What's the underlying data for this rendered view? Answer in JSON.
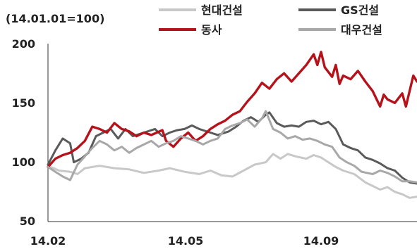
{
  "chart_data": {
    "type": "line",
    "unit_label": "(14.01.01=100)",
    "y_ticks": [
      "200",
      "150",
      "100",
      "50"
    ],
    "y_tick_values": [
      200,
      150,
      100,
      50
    ],
    "x_ticks": [
      "14.02",
      "14.05",
      "14.09"
    ],
    "x_tick_positions": [
      0,
      0.33,
      0.66
    ],
    "ylim": [
      50,
      200
    ],
    "xlim": [
      0,
      1
    ],
    "grid": false,
    "legend_position": "top-right",
    "series": [
      {
        "name": "현대건설",
        "color": "#c8c8c8",
        "points": [
          [
            0,
            97
          ],
          [
            0.03,
            93
          ],
          [
            0.06,
            92
          ],
          [
            0.08,
            90
          ],
          [
            0.1,
            95
          ],
          [
            0.14,
            97
          ],
          [
            0.18,
            95
          ],
          [
            0.22,
            94
          ],
          [
            0.26,
            91
          ],
          [
            0.3,
            93
          ],
          [
            0.33,
            95
          ],
          [
            0.37,
            92
          ],
          [
            0.41,
            90
          ],
          [
            0.44,
            93
          ],
          [
            0.47,
            89
          ],
          [
            0.5,
            88
          ],
          [
            0.53,
            93
          ],
          [
            0.56,
            98
          ],
          [
            0.59,
            100
          ],
          [
            0.61,
            107
          ],
          [
            0.63,
            103
          ],
          [
            0.65,
            107
          ],
          [
            0.67,
            105
          ],
          [
            0.7,
            103
          ],
          [
            0.72,
            106
          ],
          [
            0.74,
            104
          ],
          [
            0.76,
            100
          ],
          [
            0.78,
            96
          ],
          [
            0.8,
            93
          ],
          [
            0.83,
            90
          ],
          [
            0.86,
            83
          ],
          [
            0.88,
            80
          ],
          [
            0.9,
            77
          ],
          [
            0.92,
            79
          ],
          [
            0.94,
            75
          ],
          [
            0.96,
            73
          ],
          [
            0.98,
            70
          ],
          [
            1,
            71
          ]
        ]
      },
      {
        "name": "GS건설",
        "color": "#5a5a5a",
        "points": [
          [
            0,
            98
          ],
          [
            0.02,
            110
          ],
          [
            0.04,
            120
          ],
          [
            0.06,
            116
          ],
          [
            0.07,
            100
          ],
          [
            0.09,
            103
          ],
          [
            0.11,
            108
          ],
          [
            0.13,
            122
          ],
          [
            0.15,
            125
          ],
          [
            0.17,
            128
          ],
          [
            0.19,
            120
          ],
          [
            0.21,
            128
          ],
          [
            0.23,
            122
          ],
          [
            0.26,
            125
          ],
          [
            0.29,
            128
          ],
          [
            0.31,
            122
          ],
          [
            0.33,
            125
          ],
          [
            0.35,
            127
          ],
          [
            0.37,
            128
          ],
          [
            0.39,
            131
          ],
          [
            0.41,
            128
          ],
          [
            0.44,
            125
          ],
          [
            0.46,
            123
          ],
          [
            0.49,
            126
          ],
          [
            0.51,
            130
          ],
          [
            0.53,
            135
          ],
          [
            0.55,
            138
          ],
          [
            0.57,
            134
          ],
          [
            0.59,
            140
          ],
          [
            0.6,
            142
          ],
          [
            0.62,
            133
          ],
          [
            0.64,
            130
          ],
          [
            0.66,
            131
          ],
          [
            0.68,
            130
          ],
          [
            0.7,
            134
          ],
          [
            0.72,
            135
          ],
          [
            0.74,
            132
          ],
          [
            0.76,
            134
          ],
          [
            0.78,
            128
          ],
          [
            0.8,
            115
          ],
          [
            0.82,
            112
          ],
          [
            0.84,
            110
          ],
          [
            0.86,
            104
          ],
          [
            0.88,
            102
          ],
          [
            0.9,
            99
          ],
          [
            0.92,
            95
          ],
          [
            0.94,
            93
          ],
          [
            0.96,
            87
          ],
          [
            0.98,
            83
          ],
          [
            1,
            82
          ]
        ]
      },
      {
        "name": "동사",
        "color": "#b5121b",
        "points": [
          [
            0,
            96
          ],
          [
            0.02,
            103
          ],
          [
            0.04,
            106
          ],
          [
            0.06,
            108
          ],
          [
            0.08,
            112
          ],
          [
            0.1,
            118
          ],
          [
            0.12,
            130
          ],
          [
            0.14,
            128
          ],
          [
            0.16,
            125
          ],
          [
            0.18,
            133
          ],
          [
            0.2,
            128
          ],
          [
            0.22,
            126
          ],
          [
            0.24,
            122
          ],
          [
            0.26,
            125
          ],
          [
            0.28,
            123
          ],
          [
            0.31,
            127
          ],
          [
            0.32,
            118
          ],
          [
            0.34,
            113
          ],
          [
            0.36,
            120
          ],
          [
            0.38,
            125
          ],
          [
            0.4,
            118
          ],
          [
            0.42,
            122
          ],
          [
            0.44,
            128
          ],
          [
            0.46,
            132
          ],
          [
            0.48,
            135
          ],
          [
            0.5,
            140
          ],
          [
            0.52,
            143
          ],
          [
            0.54,
            151
          ],
          [
            0.56,
            158
          ],
          [
            0.58,
            167
          ],
          [
            0.6,
            162
          ],
          [
            0.62,
            170
          ],
          [
            0.64,
            175
          ],
          [
            0.66,
            168
          ],
          [
            0.68,
            175
          ],
          [
            0.7,
            182
          ],
          [
            0.72,
            191
          ],
          [
            0.73,
            182
          ],
          [
            0.74,
            193
          ],
          [
            0.75,
            180
          ],
          [
            0.77,
            172
          ],
          [
            0.78,
            182
          ],
          [
            0.79,
            166
          ],
          [
            0.8,
            173
          ],
          [
            0.82,
            170
          ],
          [
            0.84,
            177
          ],
          [
            0.86,
            168
          ],
          [
            0.88,
            160
          ],
          [
            0.9,
            147
          ],
          [
            0.91,
            157
          ],
          [
            0.92,
            153
          ],
          [
            0.94,
            150
          ],
          [
            0.96,
            158
          ],
          [
            0.97,
            147
          ],
          [
            0.98,
            160
          ],
          [
            0.99,
            173
          ],
          [
            1,
            168
          ]
        ]
      },
      {
        "name": "대우건설",
        "color": "#a8a8a8",
        "points": [
          [
            0,
            96
          ],
          [
            0.02,
            92
          ],
          [
            0.04,
            88
          ],
          [
            0.06,
            85
          ],
          [
            0.08,
            98
          ],
          [
            0.1,
            105
          ],
          [
            0.12,
            112
          ],
          [
            0.14,
            118
          ],
          [
            0.16,
            115
          ],
          [
            0.18,
            110
          ],
          [
            0.2,
            113
          ],
          [
            0.22,
            108
          ],
          [
            0.24,
            112
          ],
          [
            0.26,
            115
          ],
          [
            0.28,
            118
          ],
          [
            0.3,
            113
          ],
          [
            0.32,
            116
          ],
          [
            0.34,
            118
          ],
          [
            0.36,
            122
          ],
          [
            0.38,
            120
          ],
          [
            0.4,
            118
          ],
          [
            0.42,
            115
          ],
          [
            0.44,
            118
          ],
          [
            0.46,
            120
          ],
          [
            0.48,
            128
          ],
          [
            0.5,
            131
          ],
          [
            0.52,
            133
          ],
          [
            0.54,
            136
          ],
          [
            0.56,
            130
          ],
          [
            0.58,
            137
          ],
          [
            0.59,
            143
          ],
          [
            0.61,
            128
          ],
          [
            0.63,
            125
          ],
          [
            0.65,
            120
          ],
          [
            0.67,
            122
          ],
          [
            0.69,
            119
          ],
          [
            0.71,
            120
          ],
          [
            0.73,
            118
          ],
          [
            0.75,
            115
          ],
          [
            0.77,
            113
          ],
          [
            0.79,
            104
          ],
          [
            0.81,
            100
          ],
          [
            0.83,
            97
          ],
          [
            0.85,
            92
          ],
          [
            0.88,
            90
          ],
          [
            0.9,
            93
          ],
          [
            0.92,
            91
          ],
          [
            0.94,
            88
          ],
          [
            0.96,
            84
          ],
          [
            0.98,
            84
          ],
          [
            1,
            83
          ]
        ]
      }
    ]
  }
}
